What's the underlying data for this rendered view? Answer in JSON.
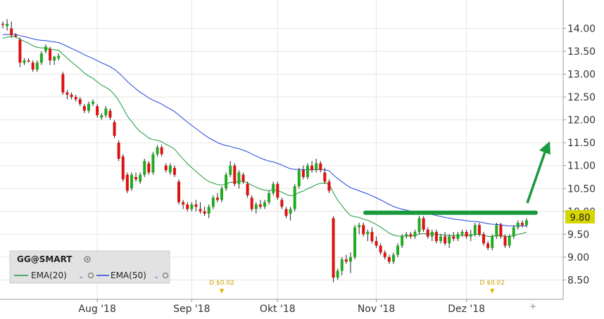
{
  "chart_data": {
    "type": "candlestick",
    "symbol": "GG@SMART",
    "y_ticks": [
      8.5,
      9.0,
      9.5,
      10.0,
      10.5,
      11.0,
      11.5,
      12.0,
      12.5,
      13.0,
      13.5,
      14.0
    ],
    "y_tick_labels": [
      "8.50",
      "9.00",
      "9.50",
      "10.00",
      "10.50",
      "11.00",
      "11.50",
      "12.00",
      "12.50",
      "13.00",
      "13.50",
      "14.00"
    ],
    "ylim": [
      8.0,
      14.55
    ],
    "x_labels": [
      {
        "text": "Aug '18",
        "i": 22
      },
      {
        "text": "Sep '18",
        "i": 44
      },
      {
        "text": "Okt '18",
        "i": 64
      },
      {
        "text": "Nov '18",
        "i": 87
      },
      {
        "text": "Dez '18",
        "i": 108
      }
    ],
    "dividends": [
      {
        "text": "D $0.02",
        "i": 51
      },
      {
        "text": "D $0.02",
        "i": 114
      }
    ],
    "last_price": "9.80",
    "last_value": 9.8,
    "legend": {
      "title": "GG@SMART",
      "items": [
        {
          "label": "EMA(20)",
          "color": "#1a9a3c"
        },
        {
          "label": "EMA(50)",
          "color": "#2244dd"
        }
      ]
    },
    "resistance_level": 9.97,
    "colors": {
      "up": "#22aa22",
      "down": "#dd1111",
      "ema20": "#1a9a3c",
      "ema50": "#2244dd",
      "trend": "#1a9a3c"
    },
    "grid": true,
    "ohlc": [
      [
        14.1,
        14.15,
        14.0,
        14.08
      ],
      [
        14.05,
        14.2,
        13.95,
        14.1
      ],
      [
        14.0,
        14.15,
        13.8,
        13.85
      ],
      [
        13.85,
        13.9,
        13.8,
        13.82
      ],
      [
        13.75,
        13.8,
        13.15,
        13.25
      ],
      [
        13.25,
        13.35,
        13.2,
        13.3
      ],
      [
        13.3,
        13.35,
        13.25,
        13.28
      ],
      [
        13.25,
        13.3,
        13.05,
        13.1
      ],
      [
        13.1,
        13.3,
        13.05,
        13.25
      ],
      [
        13.25,
        13.5,
        13.2,
        13.45
      ],
      [
        13.5,
        13.65,
        13.45,
        13.6
      ],
      [
        13.55,
        13.6,
        13.2,
        13.3
      ],
      [
        13.3,
        13.4,
        13.2,
        13.38
      ],
      [
        13.35,
        13.45,
        13.3,
        13.4
      ],
      [
        13.0,
        13.05,
        12.55,
        12.6
      ],
      [
        12.6,
        12.65,
        12.45,
        12.55
      ],
      [
        12.55,
        12.6,
        12.45,
        12.5
      ],
      [
        12.5,
        12.55,
        12.4,
        12.45
      ],
      [
        12.45,
        12.5,
        12.3,
        12.35
      ],
      [
        12.3,
        12.35,
        12.15,
        12.2
      ],
      [
        12.2,
        12.4,
        12.15,
        12.35
      ],
      [
        12.35,
        12.45,
        12.3,
        12.4
      ],
      [
        12.3,
        12.35,
        12.05,
        12.1
      ],
      [
        12.05,
        12.15,
        12.0,
        12.1
      ],
      [
        12.1,
        12.3,
        12.05,
        12.25
      ],
      [
        12.2,
        12.25,
        12.0,
        12.05
      ],
      [
        11.95,
        12.0,
        11.6,
        11.65
      ],
      [
        11.5,
        11.55,
        11.1,
        11.15
      ],
      [
        11.2,
        11.25,
        10.65,
        10.7
      ],
      [
        10.8,
        10.85,
        10.4,
        10.45
      ],
      [
        10.5,
        10.85,
        10.45,
        10.8
      ],
      [
        10.75,
        10.85,
        10.65,
        10.7
      ],
      [
        10.65,
        10.85,
        10.6,
        10.8
      ],
      [
        10.8,
        11.15,
        10.75,
        11.1
      ],
      [
        11.05,
        11.1,
        10.8,
        10.85
      ],
      [
        10.85,
        11.3,
        10.8,
        11.25
      ],
      [
        11.25,
        11.45,
        11.2,
        11.4
      ],
      [
        11.4,
        11.45,
        11.2,
        11.25
      ],
      [
        11.0,
        11.05,
        10.85,
        10.9
      ],
      [
        10.85,
        11.05,
        10.8,
        11.0
      ],
      [
        10.95,
        11.0,
        10.75,
        10.8
      ],
      [
        10.65,
        10.7,
        10.15,
        10.2
      ],
      [
        10.2,
        10.25,
        10.05,
        10.15
      ],
      [
        10.15,
        10.2,
        10.0,
        10.05
      ],
      [
        10.05,
        10.2,
        10.0,
        10.15
      ],
      [
        10.15,
        10.25,
        10.0,
        10.1
      ],
      [
        10.05,
        10.2,
        9.95,
        10.0
      ],
      [
        10.0,
        10.1,
        9.9,
        9.95
      ],
      [
        9.95,
        10.15,
        9.85,
        10.1
      ],
      [
        10.1,
        10.35,
        10.05,
        10.3
      ],
      [
        10.3,
        10.4,
        10.2,
        10.25
      ],
      [
        10.25,
        10.55,
        10.2,
        10.5
      ],
      [
        10.5,
        10.85,
        10.45,
        10.8
      ],
      [
        10.8,
        11.1,
        10.75,
        11.0
      ],
      [
        11.0,
        11.05,
        10.55,
        10.6
      ],
      [
        10.6,
        10.9,
        10.5,
        10.85
      ],
      [
        10.8,
        10.85,
        10.6,
        10.65
      ],
      [
        10.6,
        10.65,
        10.3,
        10.35
      ],
      [
        10.3,
        10.35,
        10.0,
        10.05
      ],
      [
        10.05,
        10.2,
        9.95,
        10.15
      ],
      [
        10.15,
        10.25,
        10.05,
        10.1
      ],
      [
        10.1,
        10.25,
        10.05,
        10.2
      ],
      [
        10.2,
        10.45,
        10.15,
        10.4
      ],
      [
        10.4,
        10.65,
        10.35,
        10.6
      ],
      [
        10.6,
        10.65,
        10.25,
        10.3
      ],
      [
        10.25,
        10.3,
        10.05,
        10.1
      ],
      [
        10.05,
        10.1,
        9.85,
        9.9
      ],
      [
        9.95,
        10.1,
        9.8,
        10.05
      ],
      [
        10.05,
        10.6,
        10.0,
        10.55
      ],
      [
        10.55,
        10.95,
        10.5,
        10.9
      ],
      [
        10.9,
        11.0,
        10.7,
        10.75
      ],
      [
        10.75,
        11.05,
        10.7,
        11.0
      ],
      [
        11.0,
        11.1,
        10.85,
        10.9
      ],
      [
        10.9,
        11.15,
        10.85,
        11.05
      ],
      [
        11.05,
        11.1,
        10.85,
        10.9
      ],
      [
        10.85,
        10.95,
        10.6,
        10.65
      ],
      [
        10.65,
        10.7,
        10.4,
        10.45
      ],
      [
        9.85,
        9.9,
        8.45,
        8.55
      ],
      [
        8.55,
        8.75,
        8.5,
        8.7
      ],
      [
        8.7,
        9.0,
        8.6,
        8.95
      ],
      [
        8.95,
        9.05,
        8.85,
        8.9
      ],
      [
        8.9,
        9.1,
        8.65,
        9.0
      ],
      [
        9.0,
        9.7,
        8.95,
        9.65
      ],
      [
        9.65,
        9.75,
        9.5,
        9.7
      ],
      [
        9.7,
        9.75,
        9.45,
        9.5
      ],
      [
        9.5,
        9.6,
        9.35,
        9.55
      ],
      [
        9.55,
        9.65,
        9.3,
        9.35
      ],
      [
        9.35,
        9.45,
        9.2,
        9.25
      ],
      [
        9.25,
        9.3,
        9.05,
        9.1
      ],
      [
        9.1,
        9.15,
        8.95,
        9.0
      ],
      [
        9.0,
        9.05,
        8.85,
        8.9
      ],
      [
        8.9,
        9.1,
        8.85,
        9.05
      ],
      [
        9.05,
        9.3,
        9.0,
        9.25
      ],
      [
        9.25,
        9.5,
        9.2,
        9.45
      ],
      [
        9.45,
        9.55,
        9.4,
        9.5
      ],
      [
        9.5,
        9.55,
        9.4,
        9.45
      ],
      [
        9.45,
        9.6,
        9.4,
        9.55
      ],
      [
        9.55,
        9.9,
        9.5,
        9.85
      ],
      [
        9.85,
        9.9,
        9.55,
        9.6
      ],
      [
        9.6,
        9.65,
        9.4,
        9.45
      ],
      [
        9.45,
        9.6,
        9.35,
        9.55
      ],
      [
        9.55,
        9.6,
        9.3,
        9.35
      ],
      [
        9.35,
        9.5,
        9.3,
        9.45
      ],
      [
        9.45,
        9.55,
        9.25,
        9.3
      ],
      [
        9.3,
        9.5,
        9.2,
        9.45
      ],
      [
        9.45,
        9.55,
        9.35,
        9.4
      ],
      [
        9.4,
        9.55,
        9.35,
        9.5
      ],
      [
        9.5,
        9.6,
        9.45,
        9.55
      ],
      [
        9.55,
        9.6,
        9.4,
        9.45
      ],
      [
        9.45,
        9.6,
        9.35,
        9.5
      ],
      [
        9.5,
        9.75,
        9.45,
        9.7
      ],
      [
        9.7,
        9.75,
        9.45,
        9.5
      ],
      [
        9.5,
        9.55,
        9.25,
        9.3
      ],
      [
        9.3,
        9.35,
        9.15,
        9.2
      ],
      [
        9.2,
        9.5,
        9.15,
        9.45
      ],
      [
        9.45,
        9.75,
        9.4,
        9.7
      ],
      [
        9.7,
        9.75,
        9.4,
        9.45
      ],
      [
        9.45,
        9.5,
        9.2,
        9.25
      ],
      [
        9.25,
        9.5,
        9.2,
        9.45
      ],
      [
        9.45,
        9.7,
        9.4,
        9.65
      ],
      [
        9.65,
        9.8,
        9.6,
        9.75
      ],
      [
        9.75,
        9.8,
        9.65,
        9.7
      ],
      [
        9.7,
        9.85,
        9.65,
        9.8
      ]
    ]
  }
}
